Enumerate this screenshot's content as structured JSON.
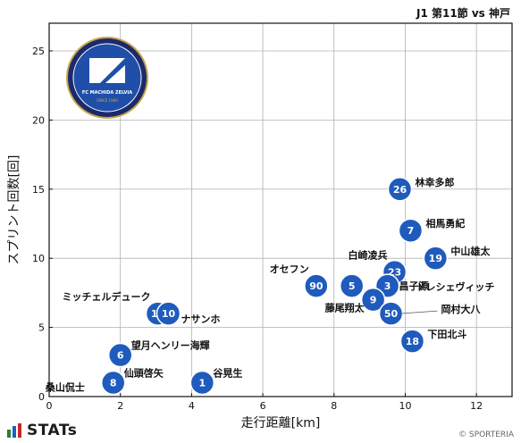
{
  "header": {
    "match": "J1 第11節 vs 神戸"
  },
  "footer": {
    "brand": "STATs",
    "copyright": "© SPORTERIA"
  },
  "team_logo": {
    "club_name": "FC MACHIDA ZELVIA",
    "since": "SINCE 1989",
    "colors": {
      "navy": "#1b2a6b",
      "blue": "#1f4fa8",
      "gold": "#c8a64b"
    }
  },
  "colors": {
    "point": "#1f5bbd",
    "point_edge": "#ffffff",
    "grid": "#b0b0b0",
    "stats_bars": [
      "#2e7d32",
      "#1565c0",
      "#c62828"
    ]
  },
  "chart_data": {
    "type": "scatter",
    "title": "J1 第11節 vs 神戸",
    "xlabel": "走行距離[km]",
    "ylabel": "スプリント回数[回]",
    "xlim": [
      0,
      13
    ],
    "ylim": [
      0,
      27
    ],
    "xticks": [
      0,
      2,
      4,
      6,
      8,
      10,
      12
    ],
    "yticks": [
      0,
      5,
      10,
      15,
      20,
      25
    ],
    "grid": true,
    "points": [
      {
        "num": "26",
        "name": "林幸多郎",
        "x": 9.85,
        "y": 15,
        "label_pos": "right"
      },
      {
        "num": "7",
        "name": "相馬勇紀",
        "x": 10.15,
        "y": 12,
        "label_pos": "right"
      },
      {
        "num": "19",
        "name": "中山雄太",
        "x": 10.85,
        "y": 10,
        "label_pos": "right"
      },
      {
        "num": "23",
        "name": "白崎凌兵",
        "x": 9.7,
        "y": 9,
        "label_pos": "top-left"
      },
      {
        "num": "90",
        "name": "オセフン",
        "x": 7.5,
        "y": 8,
        "label_pos": "top-left"
      },
      {
        "num": "5",
        "name": "",
        "x": 8.5,
        "y": 8,
        "label_pos": "none"
      },
      {
        "num": "3",
        "name": "ドレシェヴィッチ",
        "x": 9.5,
        "y": 8,
        "label_pos": "right-up"
      },
      {
        "num": "9",
        "name": "藤尾翔太",
        "x": 9.1,
        "y": 7,
        "label_pos": "bottom-left"
      },
      {
        "num": "",
        "name": "昌子源",
        "x": 9.4,
        "y": 7.5,
        "label_pos": "right"
      },
      {
        "num": "50",
        "name": "岡村大八",
        "x": 9.6,
        "y": 6,
        "label_pos": "right"
      },
      {
        "num": "18",
        "name": "下田北斗",
        "x": 10.2,
        "y": 4,
        "label_pos": "right"
      },
      {
        "num": "15",
        "name": "ミッチェルデューク",
        "x": 3.05,
        "y": 6,
        "label_pos": "top-left"
      },
      {
        "num": "10",
        "name": "ナサンホ",
        "x": 3.35,
        "y": 6,
        "label_pos": "right-down"
      },
      {
        "num": "6",
        "name": "望月ヘンリー海輝",
        "x": 2.0,
        "y": 3,
        "label_pos": "right-up"
      },
      {
        "num": "8",
        "name": "仙頭啓矢",
        "x": 1.8,
        "y": 1,
        "label_pos": "right-up"
      },
      {
        "num": "1",
        "name": "谷晃生",
        "x": 4.3,
        "y": 1,
        "label_pos": "right-up"
      },
      {
        "num": "",
        "name": "桑山侃士",
        "x": 1.1,
        "y": 0.3,
        "label_pos": "left"
      }
    ]
  }
}
